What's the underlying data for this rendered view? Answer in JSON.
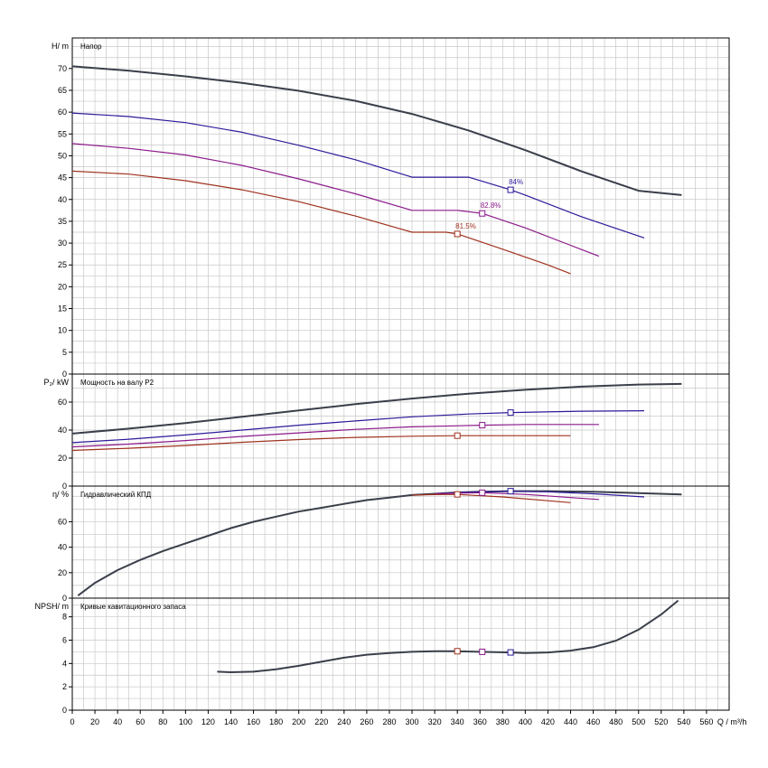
{
  "colors": {
    "grid": "#c8c8c8",
    "frame": "#000000",
    "series": [
      "#3a3f4a",
      "#2c1a9a",
      "#8b1a8b",
      "#a0321e"
    ]
  },
  "chart_data": {
    "type": "line",
    "grid": true,
    "x_axis": {
      "label": "Q / m³/h",
      "range": [
        0,
        580
      ],
      "ticks": [
        0,
        20,
        40,
        60,
        80,
        100,
        120,
        140,
        160,
        180,
        200,
        220,
        240,
        260,
        280,
        300,
        320,
        340,
        360,
        380,
        400,
        420,
        440,
        460,
        480,
        500,
        520,
        540,
        560
      ]
    },
    "panels": [
      {
        "id": "head",
        "title": "Напор",
        "ylabel": "H/ m",
        "ylim": [
          0,
          77
        ],
        "yticks": [
          0,
          5,
          10,
          15,
          20,
          25,
          30,
          35,
          40,
          45,
          50,
          55,
          60,
          65,
          70
        ],
        "series": [
          {
            "x": [
              0,
              50,
              100,
              150,
              200,
              250,
              300,
              350,
              400,
              450,
              500,
              538
            ],
            "y": [
              70.5,
              69.5,
              68.2,
              66.7,
              64.9,
              62.6,
              59.6,
              55.8,
              51.3,
              46.4,
              42.0,
              41.0
            ]
          },
          {
            "x": [
              0,
              50,
              100,
              150,
              200,
              250,
              300,
              350,
              387,
              400,
              450,
              505
            ],
            "y": [
              59.8,
              59.0,
              57.6,
              55.4,
              52.4,
              49.1,
              45.1,
              45.1,
              42.2,
              41.0,
              36.0,
              31.2
            ]
          },
          {
            "x": [
              0,
              50,
              100,
              150,
              200,
              250,
              300,
              340,
              362,
              400,
              440,
              465
            ],
            "y": [
              52.8,
              51.7,
              50.2,
              47.8,
              44.7,
              41.3,
              37.5,
              37.5,
              36.8,
              33.5,
              29.5,
              27.0
            ]
          },
          {
            "x": [
              0,
              50,
              100,
              150,
              200,
              250,
              300,
              330,
              340,
              380,
              420,
              440
            ],
            "y": [
              46.5,
              45.8,
              44.3,
              42.2,
              39.5,
              36.2,
              32.5,
              32.5,
              32.1,
              28.6,
              25.0,
              23.0
            ]
          }
        ],
        "annotations": [
          {
            "text": "84%",
            "x": 387,
            "y": 42.2,
            "series": 0
          },
          {
            "text": "82.8%",
            "x": 362,
            "y": 36.8,
            "series": 1
          },
          {
            "text": "81.5%",
            "x": 340,
            "y": 32.1,
            "series": 2
          }
        ]
      },
      {
        "id": "power",
        "title": "Мощность на валу P2",
        "ylabel": "P₂/ kW",
        "ylim": [
          0,
          80
        ],
        "yticks": [
          0,
          20,
          40,
          60
        ],
        "series": [
          {
            "x": [
              0,
              50,
              100,
              150,
              200,
              250,
              300,
              350,
              400,
              450,
              500,
              538
            ],
            "y": [
              37.5,
              41.0,
              45.0,
              49.5,
              54.0,
              58.5,
              62.5,
              66.0,
              68.8,
              71.0,
              72.5,
              73.0
            ]
          },
          {
            "x": [
              0,
              50,
              100,
              150,
              200,
              250,
              300,
              350,
              387,
              450,
              505
            ],
            "y": [
              31.0,
              33.5,
              36.5,
              40.0,
              43.5,
              46.5,
              49.5,
              51.5,
              52.5,
              53.5,
              53.8
            ]
          },
          {
            "x": [
              0,
              50,
              100,
              150,
              200,
              250,
              300,
              362,
              400,
              465
            ],
            "y": [
              28.0,
              30.0,
              32.5,
              35.5,
              38.0,
              40.5,
              42.3,
              43.5,
              44.0,
              44.0
            ]
          },
          {
            "x": [
              0,
              50,
              100,
              150,
              200,
              250,
              300,
              340,
              440
            ],
            "y": [
              25.5,
              27.0,
              29.0,
              31.3,
              33.2,
              34.8,
              35.6,
              36.0,
              36.0
            ]
          }
        ],
        "markers": [
          {
            "x": 387,
            "y": 52.5,
            "series": 1
          },
          {
            "x": 362,
            "y": 43.5,
            "series": 2
          },
          {
            "x": 340,
            "y": 36.0,
            "series": 3
          }
        ]
      },
      {
        "id": "efficiency",
        "title": "Гидравлический КПД",
        "ylabel": "η/ %",
        "ylim": [
          0,
          88
        ],
        "yticks": [
          0,
          20,
          40,
          60
        ],
        "series": [
          {
            "x": [
              5,
              20,
              40,
              60,
              80,
              100,
              120,
              140,
              160,
              180,
              200,
              220,
              240,
              260,
              280,
              300,
              320,
              340,
              360,
              387,
              420,
              460,
              500,
              538
            ],
            "y": [
              2,
              12,
              22,
              30,
              37,
              43,
              49,
              55,
              60,
              64,
              68,
              71,
              74,
              77,
              79,
              81,
              82,
              83,
              83.5,
              84,
              84,
              83.5,
              82.5,
              81.5
            ]
          },
          {
            "x": [
              320,
              340,
              362,
              387,
              420,
              460,
              505
            ],
            "y": [
              82,
              83,
              83.5,
              84,
              83.5,
              82,
              79.5
            ]
          },
          {
            "x": [
              320,
              340,
              362,
              400,
              440,
              465
            ],
            "y": [
              82,
              82.5,
              82.8,
              81.5,
              79,
              77.5
            ]
          },
          {
            "x": [
              300,
              320,
              340,
              380,
              420,
              440
            ],
            "y": [
              81,
              81.3,
              81.5,
              79.5,
              76.5,
              75
            ]
          }
        ],
        "markers": [
          {
            "x": 387,
            "y": 84,
            "series": 1
          },
          {
            "x": 362,
            "y": 82.8,
            "series": 2
          },
          {
            "x": 340,
            "y": 81.5,
            "series": 3
          }
        ]
      },
      {
        "id": "npsh",
        "title": "Кривые кавитационного запаса",
        "ylabel": "NPSH/ m",
        "ylim": [
          0,
          9.6
        ],
        "yticks": [
          0,
          2,
          4,
          6,
          8
        ],
        "series": [
          {
            "x": [
              128,
              140,
              160,
              180,
              200,
              220,
              240,
              260,
              280,
              300,
              320,
              340,
              360,
              387,
              400,
              420,
              440,
              460,
              480,
              500,
              520,
              535
            ],
            "y": [
              3.3,
              3.25,
              3.3,
              3.5,
              3.8,
              4.15,
              4.5,
              4.75,
              4.9,
              5.0,
              5.05,
              5.05,
              5.0,
              4.95,
              4.9,
              4.95,
              5.1,
              5.4,
              5.95,
              6.9,
              8.2,
              9.4
            ]
          }
        ],
        "markers": [
          {
            "x": 340,
            "y": 5.05,
            "series": 3
          },
          {
            "x": 362,
            "y": 5.0,
            "series": 2
          },
          {
            "x": 387,
            "y": 4.95,
            "series": 1
          }
        ]
      }
    ]
  }
}
